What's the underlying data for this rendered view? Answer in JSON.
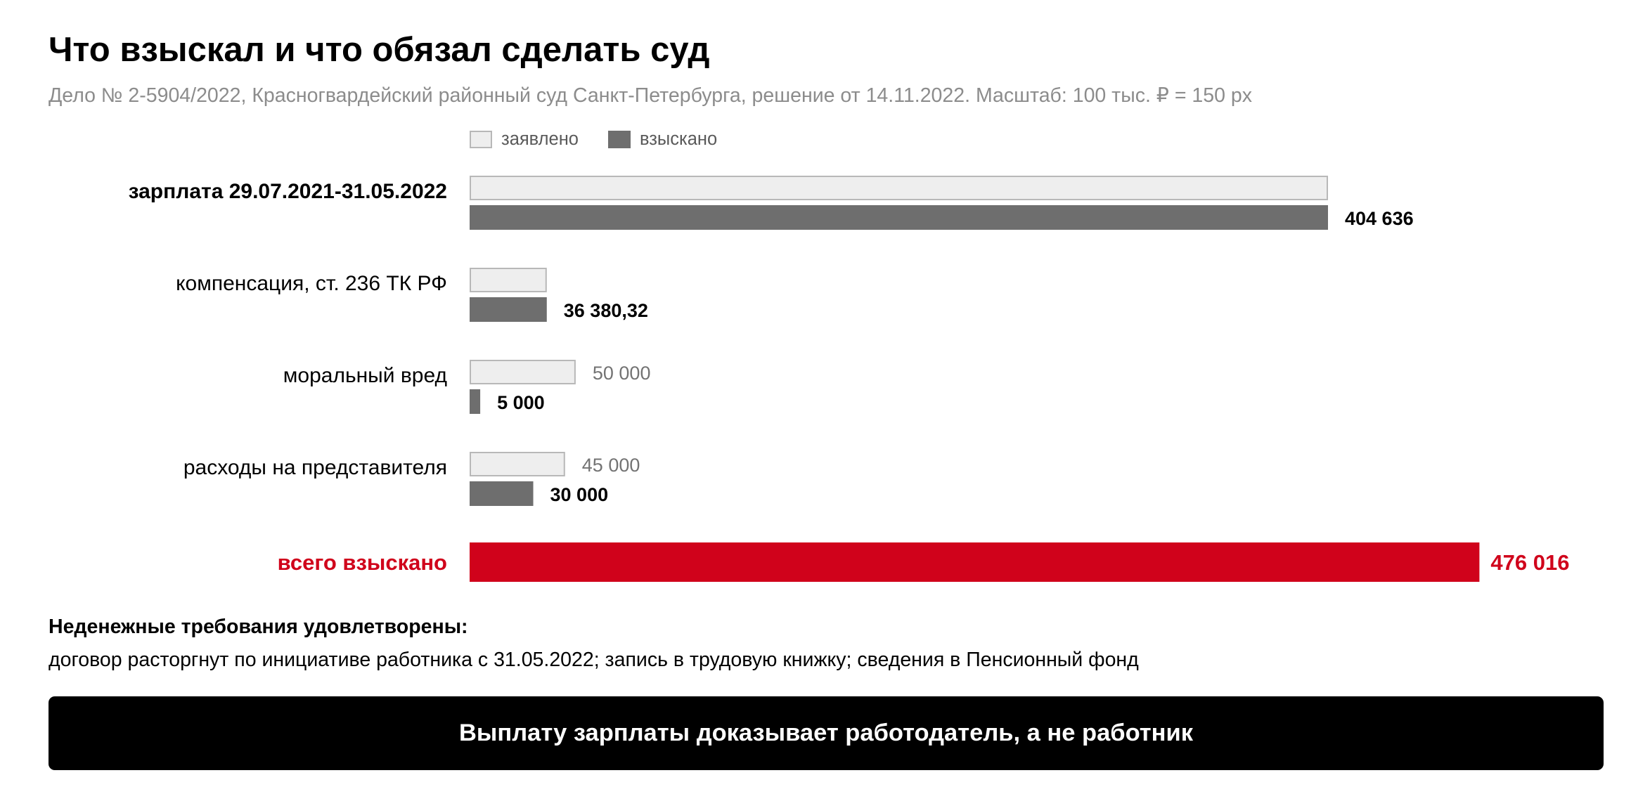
{
  "title": "Что взыскал и что обязал сделать суд",
  "subtitle": "Дело № 2-5904/2022, Красногвардейский районный суд Санкт-Петербурга, решение от 14.11.2022. Масштаб: 100 тыс. ₽ = 150 px",
  "legend": {
    "claimed": "заявлено",
    "awarded": "взыскано"
  },
  "colors": {
    "claimed_fill": "#eeeeee",
    "claimed_border": "#b8b8b8",
    "awarded": "#6e6e6e",
    "total": "#d0021b",
    "claimed_label": "#737373"
  },
  "chart_data": {
    "type": "bar",
    "orientation": "horizontal",
    "categories": [
      "зарплата 29.07.2021-31.05.2022",
      "компенсация, ст. 236 ТК РФ",
      "моральный вред",
      "расходы на представителя"
    ],
    "category_bold": [
      true,
      false,
      false,
      false
    ],
    "series": [
      {
        "name": "заявлено",
        "values": [
          404636,
          36380.32,
          50000,
          45000
        ]
      },
      {
        "name": "взыскано",
        "values": [
          404636,
          36380.32,
          5000,
          30000
        ]
      }
    ],
    "claimed_value_labels": [
      "",
      "",
      "50 000",
      "45 000"
    ],
    "awarded_value_labels": [
      "404 636",
      "36 380,32",
      "5 000",
      "30 000"
    ],
    "total": {
      "label": "всего взыскано",
      "value": 476016,
      "value_label": "476 016"
    }
  },
  "note": {
    "heading": "Неденежные требования удовлетворены:",
    "text": "договор расторгнут по инициативе работника с 31.05.2022; запись в трудовую книжку; сведения в Пенсионный фонд"
  },
  "banner": {
    "text": "Выплату зарплаты доказывает работодатель, а не работник"
  }
}
